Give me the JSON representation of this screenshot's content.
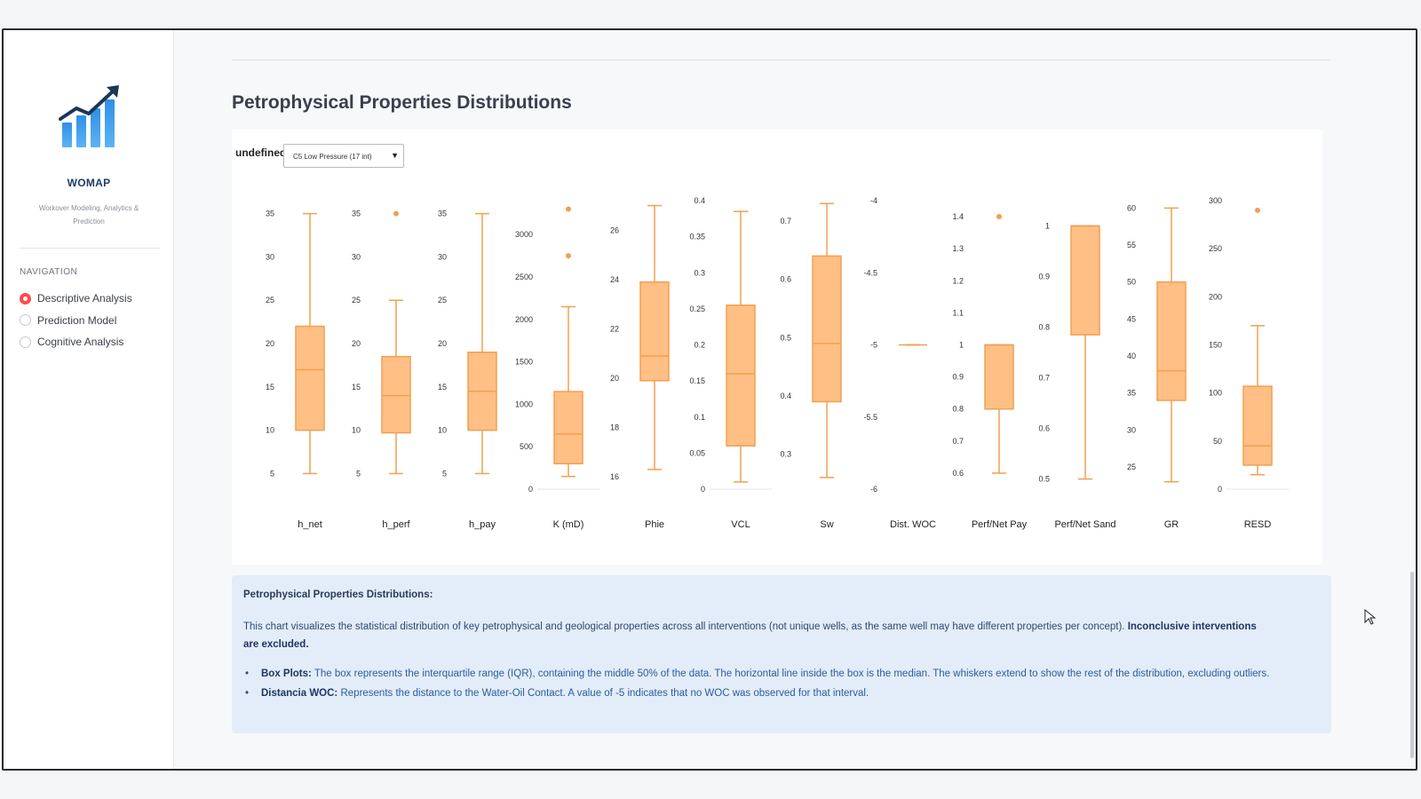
{
  "sidebar": {
    "brand": "WOMAP",
    "tagline": "Workover Modeling, Analytics & Prediction",
    "nav_heading": "NAVIGATION",
    "nav_items": [
      {
        "label": "Descriptive Analysis",
        "selected": true
      },
      {
        "label": "Prediction Model",
        "selected": false
      },
      {
        "label": "Cognitive Analysis",
        "selected": false
      }
    ]
  },
  "main": {
    "title": "Petrophysical Properties Distributions",
    "filter": {
      "label": "undefined",
      "selected": "C5 Low Pressure (17 int)"
    }
  },
  "colors": {
    "box_fill": "#ffbf85",
    "box_stroke": "#f0a050",
    "accent": "#ff4b4b",
    "info_bg": "#e3edf9"
  },
  "chart_data": {
    "type": "box",
    "series": [
      {
        "name": "h_net",
        "ticks": [
          "35",
          "30",
          "25",
          "20",
          "15",
          "10",
          "5"
        ],
        "tick_values": [
          35,
          30,
          25,
          20,
          15,
          10,
          5
        ],
        "range": [
          3.2,
          36.5
        ],
        "stats": {
          "lower": 5,
          "q1": 10,
          "median": 17,
          "q3": 22,
          "upper": 35
        },
        "outliers": []
      },
      {
        "name": "h_perf",
        "ticks": [
          "35",
          "30",
          "25",
          "20",
          "15",
          "10",
          "5"
        ],
        "tick_values": [
          35,
          30,
          25,
          20,
          15,
          10,
          5
        ],
        "range": [
          3.2,
          36.5
        ],
        "stats": {
          "lower": 5,
          "q1": 9.7,
          "median": 14,
          "q3": 18.5,
          "upper": 25
        },
        "outliers": [
          35
        ]
      },
      {
        "name": "h_pay",
        "ticks": [
          "35",
          "30",
          "25",
          "20",
          "15",
          "10",
          "5"
        ],
        "tick_values": [
          35,
          30,
          25,
          20,
          15,
          10,
          5
        ],
        "range": [
          3.2,
          36.5
        ],
        "stats": {
          "lower": 5,
          "q1": 10,
          "median": 14.5,
          "q3": 19,
          "upper": 35
        },
        "outliers": []
      },
      {
        "name": "K (mD)",
        "ticks": [
          "3000",
          "2500",
          "2000",
          "1500",
          "1000",
          "500",
          "0"
        ],
        "tick_values": [
          3000,
          2500,
          2000,
          1500,
          1000,
          500,
          0
        ],
        "range": [
          0,
          3400
        ],
        "stats": {
          "lower": 150,
          "q1": 300,
          "median": 650,
          "q3": 1150,
          "upper": 2150
        },
        "outliers": [
          2750,
          3300
        ]
      },
      {
        "name": "Phie",
        "ticks": [
          "26",
          "24",
          "22",
          "20",
          "18",
          "16"
        ],
        "tick_values": [
          26,
          24,
          22,
          20,
          18,
          16
        ],
        "range": [
          15.5,
          27.2
        ],
        "stats": {
          "lower": 16.3,
          "q1": 19.9,
          "median": 20.9,
          "q3": 23.9,
          "upper": 27
        },
        "outliers": []
      },
      {
        "name": "VCL",
        "ticks": [
          "0.4",
          "0.35",
          "0.3",
          "0.25",
          "0.2",
          "0.15",
          "0.1",
          "0.05",
          "0"
        ],
        "tick_values": [
          0.4,
          0.35,
          0.3,
          0.25,
          0.2,
          0.15,
          0.1,
          0.05,
          0
        ],
        "range": [
          0,
          0.4
        ],
        "stats": {
          "lower": 0.01,
          "q1": 0.06,
          "median": 0.16,
          "q3": 0.255,
          "upper": 0.385
        },
        "outliers": []
      },
      {
        "name": "Sw",
        "ticks": [
          "0.7",
          "0.6",
          "0.5",
          "0.4",
          "0.3"
        ],
        "tick_values": [
          0.7,
          0.6,
          0.5,
          0.4,
          0.3
        ],
        "range": [
          0.24,
          0.735
        ],
        "stats": {
          "lower": 0.26,
          "q1": 0.39,
          "median": 0.49,
          "q3": 0.64,
          "upper": 0.73
        },
        "outliers": []
      },
      {
        "name": "Dist. WOC",
        "ticks": [
          "-4",
          "-4.5",
          "-5",
          "-5.5",
          "-6"
        ],
        "tick_values": [
          -4,
          -4.5,
          -5,
          -5.5,
          -6
        ],
        "range": [
          -6,
          -4
        ],
        "stats": {
          "lower": -5,
          "q1": -5,
          "median": -5,
          "q3": -5,
          "upper": -5
        },
        "outliers": []
      },
      {
        "name": "Perf/Net Pay",
        "ticks": [
          "1.4",
          "1.3",
          "1.2",
          "1.1",
          "1",
          "0.9",
          "0.8",
          "0.7",
          "0.6"
        ],
        "tick_values": [
          1.4,
          1.3,
          1.2,
          1.1,
          1,
          0.9,
          0.8,
          0.7,
          0.6
        ],
        "range": [
          0.55,
          1.45
        ],
        "stats": {
          "lower": 0.6,
          "q1": 0.8,
          "median": 1.0,
          "q3": 1.0,
          "upper": 1.0
        },
        "outliers": [
          1.4
        ]
      },
      {
        "name": "Perf/Net Sand",
        "ticks": [
          "1",
          "0.9",
          "0.8",
          "0.7",
          "0.6",
          "0.5"
        ],
        "tick_values": [
          1,
          0.9,
          0.8,
          0.7,
          0.6,
          0.5
        ],
        "range": [
          0.48,
          1.05
        ],
        "stats": {
          "lower": 0.5,
          "q1": 0.785,
          "median": 1.0,
          "q3": 1.0,
          "upper": 1.0
        },
        "outliers": []
      },
      {
        "name": "GR",
        "ticks": [
          "60",
          "55",
          "50",
          "45",
          "40",
          "35",
          "30",
          "25"
        ],
        "tick_values": [
          60,
          55,
          50,
          45,
          40,
          35,
          30,
          25
        ],
        "range": [
          22,
          61
        ],
        "stats": {
          "lower": 23,
          "q1": 34,
          "median": 38,
          "q3": 50,
          "upper": 60
        },
        "outliers": []
      },
      {
        "name": "RESD",
        "ticks": [
          "300",
          "250",
          "200",
          "150",
          "100",
          "50",
          "0"
        ],
        "tick_values": [
          300,
          250,
          200,
          150,
          100,
          50,
          0
        ],
        "range": [
          0,
          300
        ],
        "stats": {
          "lower": 15,
          "q1": 25,
          "median": 45,
          "q3": 107,
          "upper": 170
        },
        "outliers": [
          290
        ]
      }
    ]
  },
  "info": {
    "title": "Petrophysical Properties Distributions:",
    "desc": "This chart visualizes the statistical distribution of key petrophysical and geological properties across all interventions (not unique wells, as the same well may have different properties per concept).",
    "desc_bold": "Inconclusive interventions are excluded.",
    "bullets": [
      {
        "term": "Box Plots:",
        "text": "The box represents the interquartile range (IQR), containing the middle 50% of the data. The horizontal line inside the box is the median. The whiskers extend to show the rest of the distribution, excluding outliers."
      },
      {
        "term": "Distancia WOC:",
        "text": "Represents the distance to the Water-Oil Contact. A value of -5 indicates that no WOC was observed for that interval."
      }
    ]
  }
}
